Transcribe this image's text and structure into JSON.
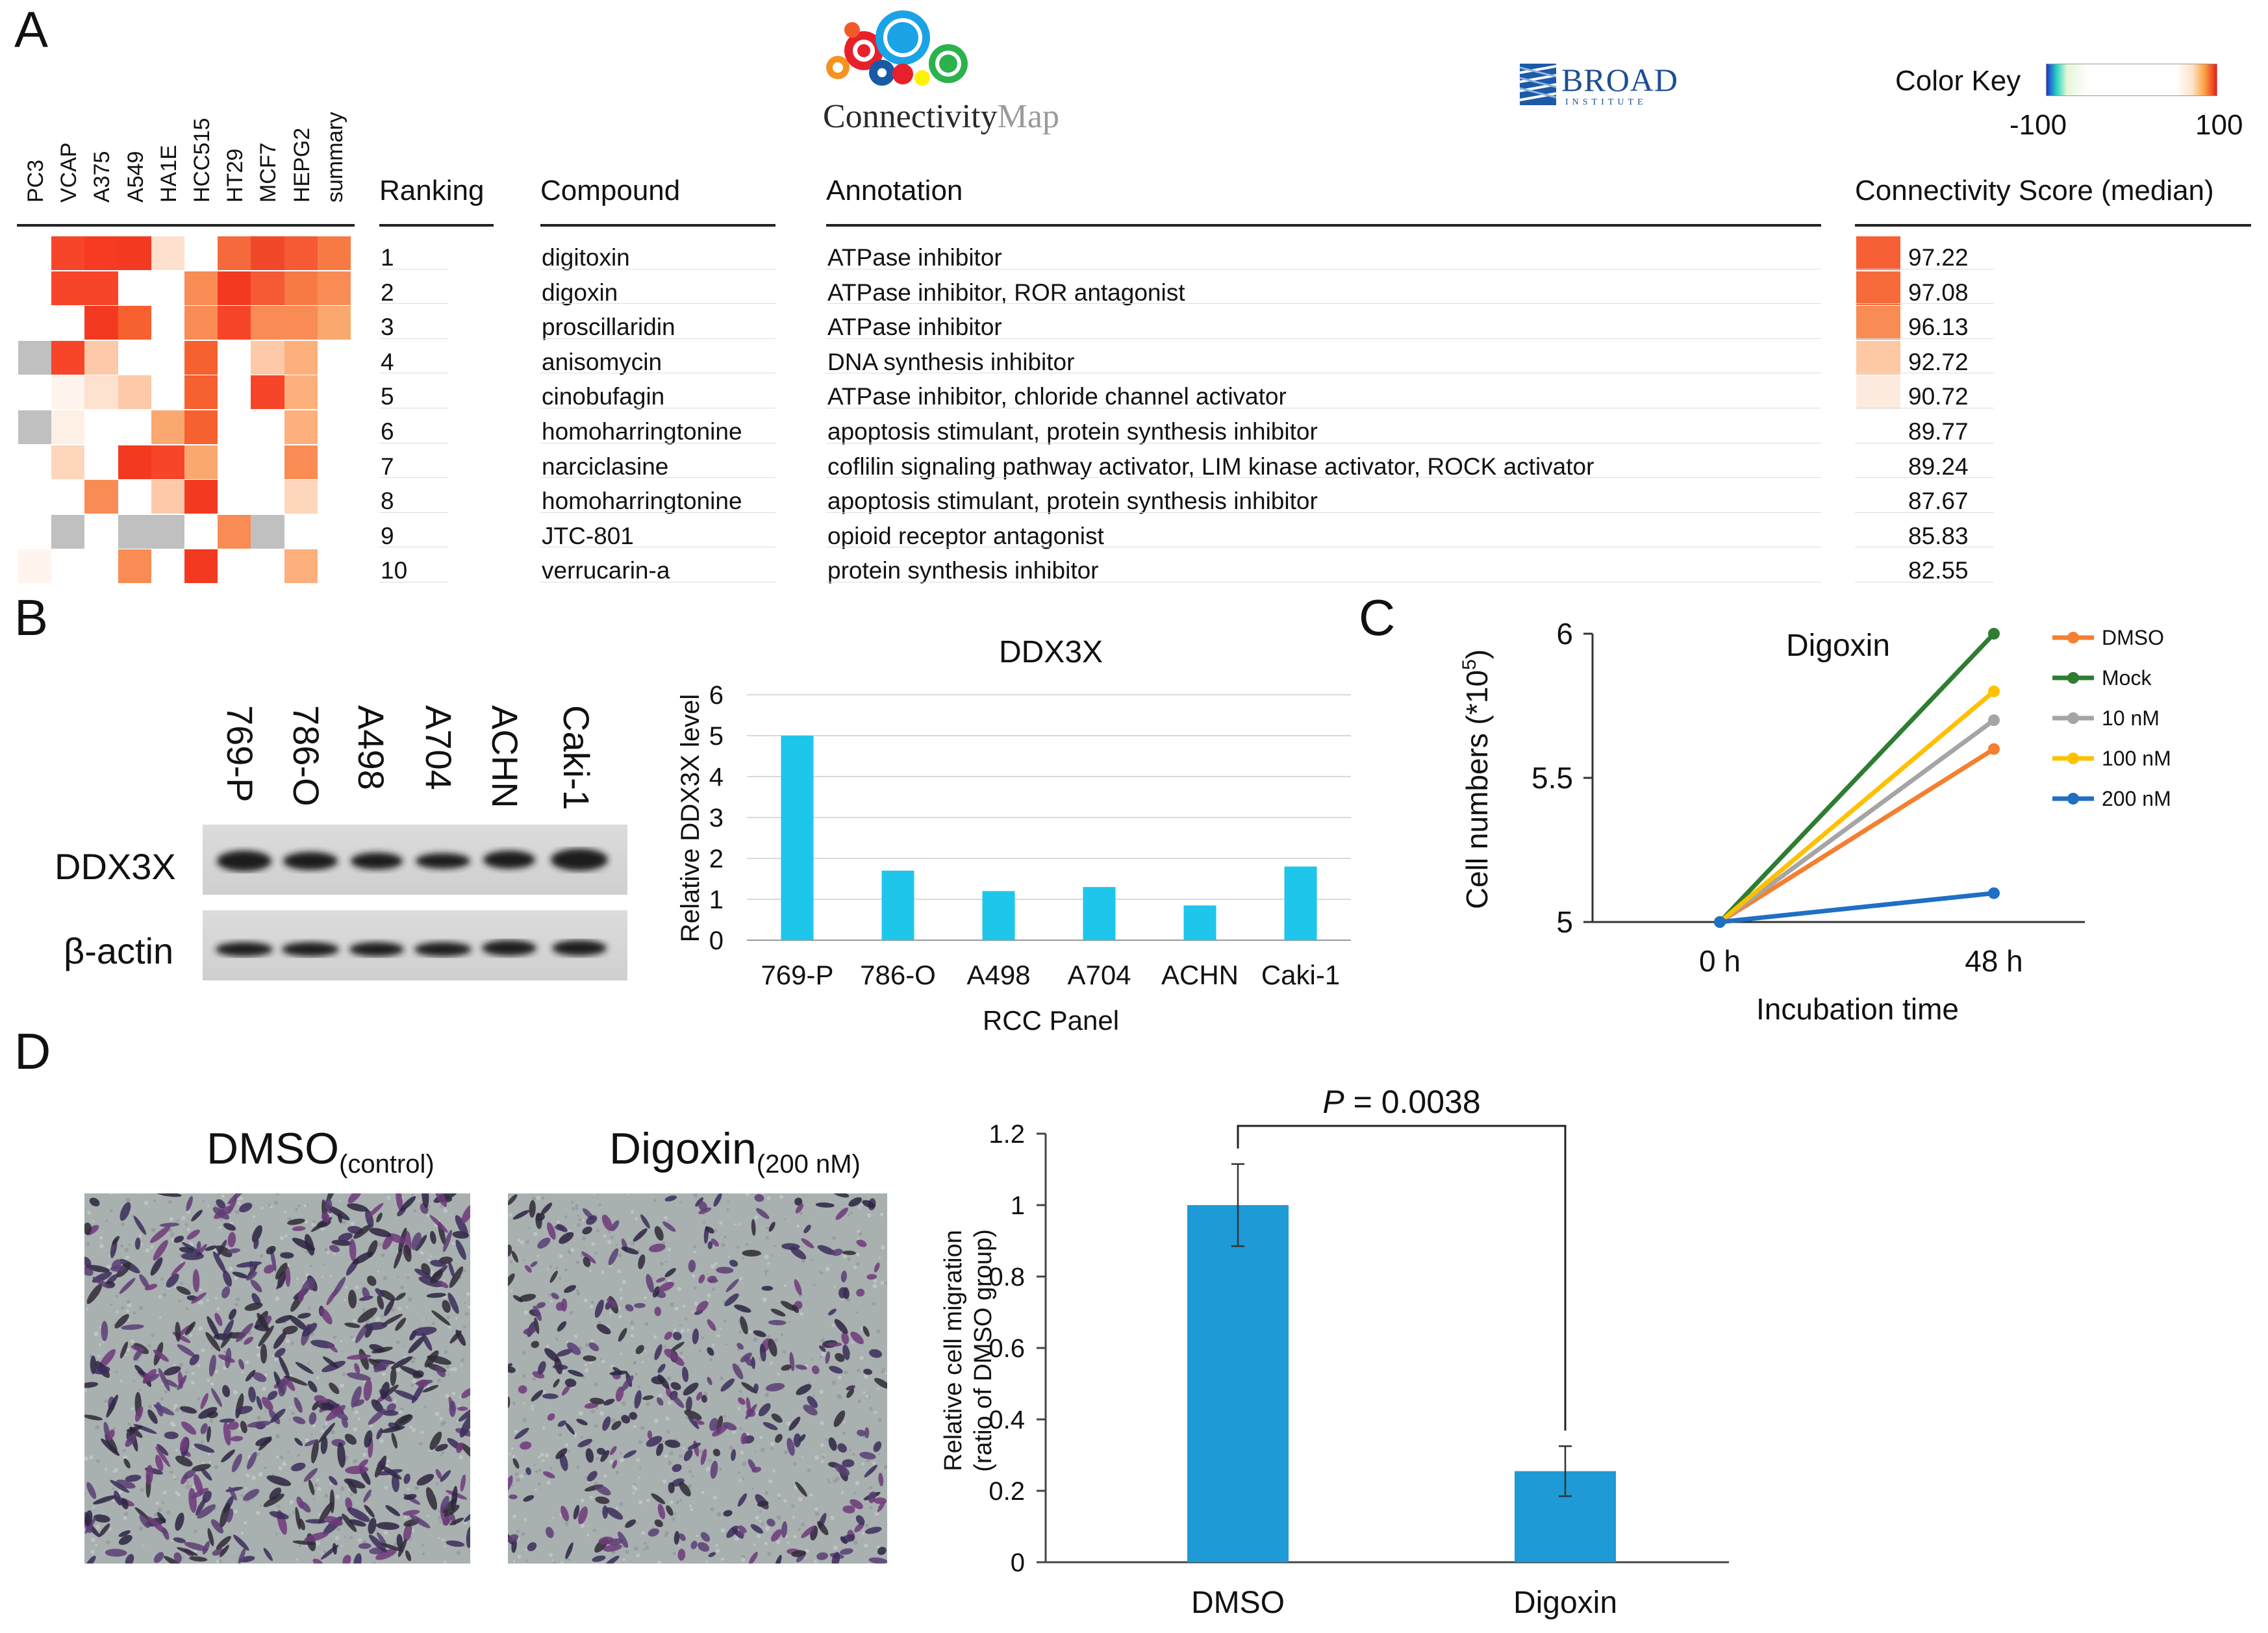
{
  "panels": {
    "a": "A",
    "b": "B",
    "c": "C",
    "d": "D"
  },
  "panel_a": {
    "cmap_logo_left": "Connectivity",
    "cmap_logo_right": "Map",
    "broad_logo": "BROAD",
    "broad_sub": "INSTITUTE",
    "color_key_label": "Color Key",
    "color_key_min": "-100",
    "color_key_max": "100",
    "cell_lines": [
      "PC3",
      "VCAP",
      "A375",
      "A549",
      "HA1E",
      "HCC515",
      "HT29",
      "MCF7",
      "HEPG2",
      "summary"
    ],
    "headers": {
      "ranking": "Ranking",
      "compound": "Compound",
      "annotation": "Annotation",
      "score": "Connectivity Score (median)"
    },
    "rows": [
      {
        "rank": "1",
        "compound": "digitoxin",
        "annotation": "ATPase inhibitor",
        "score": "97.22",
        "cells": [
          "#ffffff",
          "#f7452a",
          "#f73a22",
          "#f33a20",
          "#fde0cd",
          "#ffffff",
          "#f56a3c",
          "#f2482a",
          "#f55a34",
          "#f77a45"
        ],
        "swatch": "#f76035"
      },
      {
        "rank": "2",
        "compound": "digoxin",
        "annotation": "ATPase inhibitor, ROR antagonist",
        "score": "97.08",
        "cells": [
          "#ffffff",
          "#f7452a",
          "#f7452a",
          "#ffffff",
          "#ffffff",
          "#f98c55",
          "#f33a20",
          "#f55a34",
          "#f77a45",
          "#f98c55"
        ],
        "swatch": "#f76a3a"
      },
      {
        "rank": "3",
        "compound": "proscillaridin",
        "annotation": "ATPase inhibitor",
        "score": "96.13",
        "cells": [
          "#ffffff",
          "#ffffff",
          "#f33a20",
          "#f7602f",
          "#ffffff",
          "#f98c55",
          "#f7452a",
          "#f98c55",
          "#f98c55",
          "#fba870"
        ],
        "swatch": "#f98c55"
      },
      {
        "rank": "4",
        "compound": "anisomycin",
        "annotation": "DNA synthesis inhibitor",
        "score": "92.72",
        "cells": [
          "#c0c0c0",
          "#f7452a",
          "#fdc9a8",
          "#ffffff",
          "#ffffff",
          "#f7602f",
          "#ffffff",
          "#fdc9a8",
          "#fdb07c",
          "#ffffff"
        ],
        "swatch": "#fdc9a4"
      },
      {
        "rank": "5",
        "compound": "cinobufagin",
        "annotation": "ATPase inhibitor, chloride channel activator",
        "score": "90.72",
        "cells": [
          "#ffffff",
          "#fff4ee",
          "#fde2d0",
          "#fdc9a8",
          "#ffffff",
          "#f7602f",
          "#ffffff",
          "#f7452a",
          "#fdb07c",
          "#ffffff"
        ],
        "swatch": "#fdeadf"
      },
      {
        "rank": "6",
        "compound": "homoharringtonine",
        "annotation": "apoptosis stimulant, protein synthesis inhibitor",
        "score": "89.77",
        "cells": [
          "#c0c0c0",
          "#fff0e6",
          "#ffffff",
          "#ffffff",
          "#fba870",
          "#f7602f",
          "#ffffff",
          "#ffffff",
          "#fdb07c",
          "#ffffff"
        ],
        "swatch": "#ffffff"
      },
      {
        "rank": "7",
        "compound": "narciclasine",
        "annotation": "coflilin signaling pathway activator, LIM kinase activator, ROCK activator",
        "score": "89.24",
        "cells": [
          "#ffffff",
          "#fdd6bb",
          "#ffffff",
          "#f33a20",
          "#f7452a",
          "#fba870",
          "#ffffff",
          "#ffffff",
          "#f98c55",
          "#ffffff"
        ],
        "swatch": "#ffffff"
      },
      {
        "rank": "8",
        "compound": "homoharringtonine",
        "annotation": "apoptosis stimulant, protein synthesis inhibitor",
        "score": "87.67",
        "cells": [
          "#ffffff",
          "#ffffff",
          "#f98c55",
          "#ffffff",
          "#fdc9a8",
          "#f33a20",
          "#ffffff",
          "#ffffff",
          "#fdd6bb",
          "#ffffff"
        ],
        "swatch": "#ffffff"
      },
      {
        "rank": "9",
        "compound": "JTC-801",
        "annotation": "opioid receptor antagonist",
        "score": "85.83",
        "cells": [
          "#ffffff",
          "#c0c0c0",
          "#ffffff",
          "#c0c0c0",
          "#c0c0c0",
          "#ffffff",
          "#f98c55",
          "#c0c0c0",
          "#ffffff",
          "#ffffff"
        ],
        "swatch": "#ffffff"
      },
      {
        "rank": "10",
        "compound": "verrucarin-a",
        "annotation": "protein synthesis inhibitor",
        "score": "82.55",
        "cells": [
          "#fff4ee",
          "#ffffff",
          "#ffffff",
          "#f98c55",
          "#ffffff",
          "#f33a20",
          "#ffffff",
          "#ffffff",
          "#fdb07c",
          "#ffffff"
        ],
        "swatch": "#ffffff"
      }
    ]
  },
  "panel_b": {
    "blot_lanes": [
      "769-P",
      "786-O",
      "A498",
      "A704",
      "ACHN",
      "Caki-1"
    ],
    "blot_rows": [
      "DDX3X",
      "β-actin"
    ]
  },
  "chart_data": [
    {
      "type": "bar",
      "id": "ddx3x",
      "title": "DDX3X",
      "xlabel": "RCC Panel",
      "ylabel": "Relative DDX3X level",
      "categories": [
        "769-P",
        "786-O",
        "A498",
        "A704",
        "ACHN",
        "Caki-1"
      ],
      "values": [
        5.0,
        1.7,
        1.2,
        1.3,
        0.85,
        1.8
      ],
      "ylim": [
        0,
        6
      ],
      "yticks": [
        0,
        1,
        2,
        3,
        4,
        5,
        6
      ],
      "grid": true,
      "color": "#1ec6ec"
    },
    {
      "type": "line",
      "id": "digoxin",
      "title": "Digoxin",
      "xlabel": "Incubation time",
      "ylabel_main": "Cell numbers (*10",
      "ylabel_sup": "5",
      "ylabel_end": ")",
      "x": [
        "0 h",
        "48 h"
      ],
      "ylim": [
        5,
        6
      ],
      "yticks": [
        "5",
        "5.5",
        "6"
      ],
      "series": [
        {
          "name": "DMSO",
          "values": [
            5.0,
            5.6
          ],
          "color": "#f47f2f"
        },
        {
          "name": "Mock",
          "values": [
            5.0,
            6.0
          ],
          "color": "#2e7d32"
        },
        {
          "name": "10 nM",
          "values": [
            5.0,
            5.7
          ],
          "color": "#a5a5a5"
        },
        {
          "name": "100 nM",
          "values": [
            5.0,
            5.8
          ],
          "color": "#ffc000"
        },
        {
          "name": "200 nM",
          "values": [
            5.0,
            5.1
          ],
          "color": "#1f6fc4"
        }
      ],
      "legend": "right"
    },
    {
      "type": "bar",
      "id": "migration",
      "categories": [
        "DMSO",
        "Digoxin"
      ],
      "values": [
        1.0,
        0.255
      ],
      "errors": [
        0.115,
        0.07
      ],
      "ylabel_line1": "Relative cell migration",
      "ylabel_line2": "(ratio of DMSO group)",
      "ylim": [
        0,
        1.2
      ],
      "yticks": [
        "0",
        "0.2",
        "0.4",
        "0.6",
        "0.8",
        "1",
        "1.2"
      ],
      "annotation_p": "P",
      "annotation_value": " = 0.0038",
      "color": "#1e9ad6"
    }
  ],
  "panel_d": {
    "image_left_main": "DMSO",
    "image_left_sub": "(control)",
    "image_right_main": "Digoxin",
    "image_right_sub": "(200 nM)"
  }
}
